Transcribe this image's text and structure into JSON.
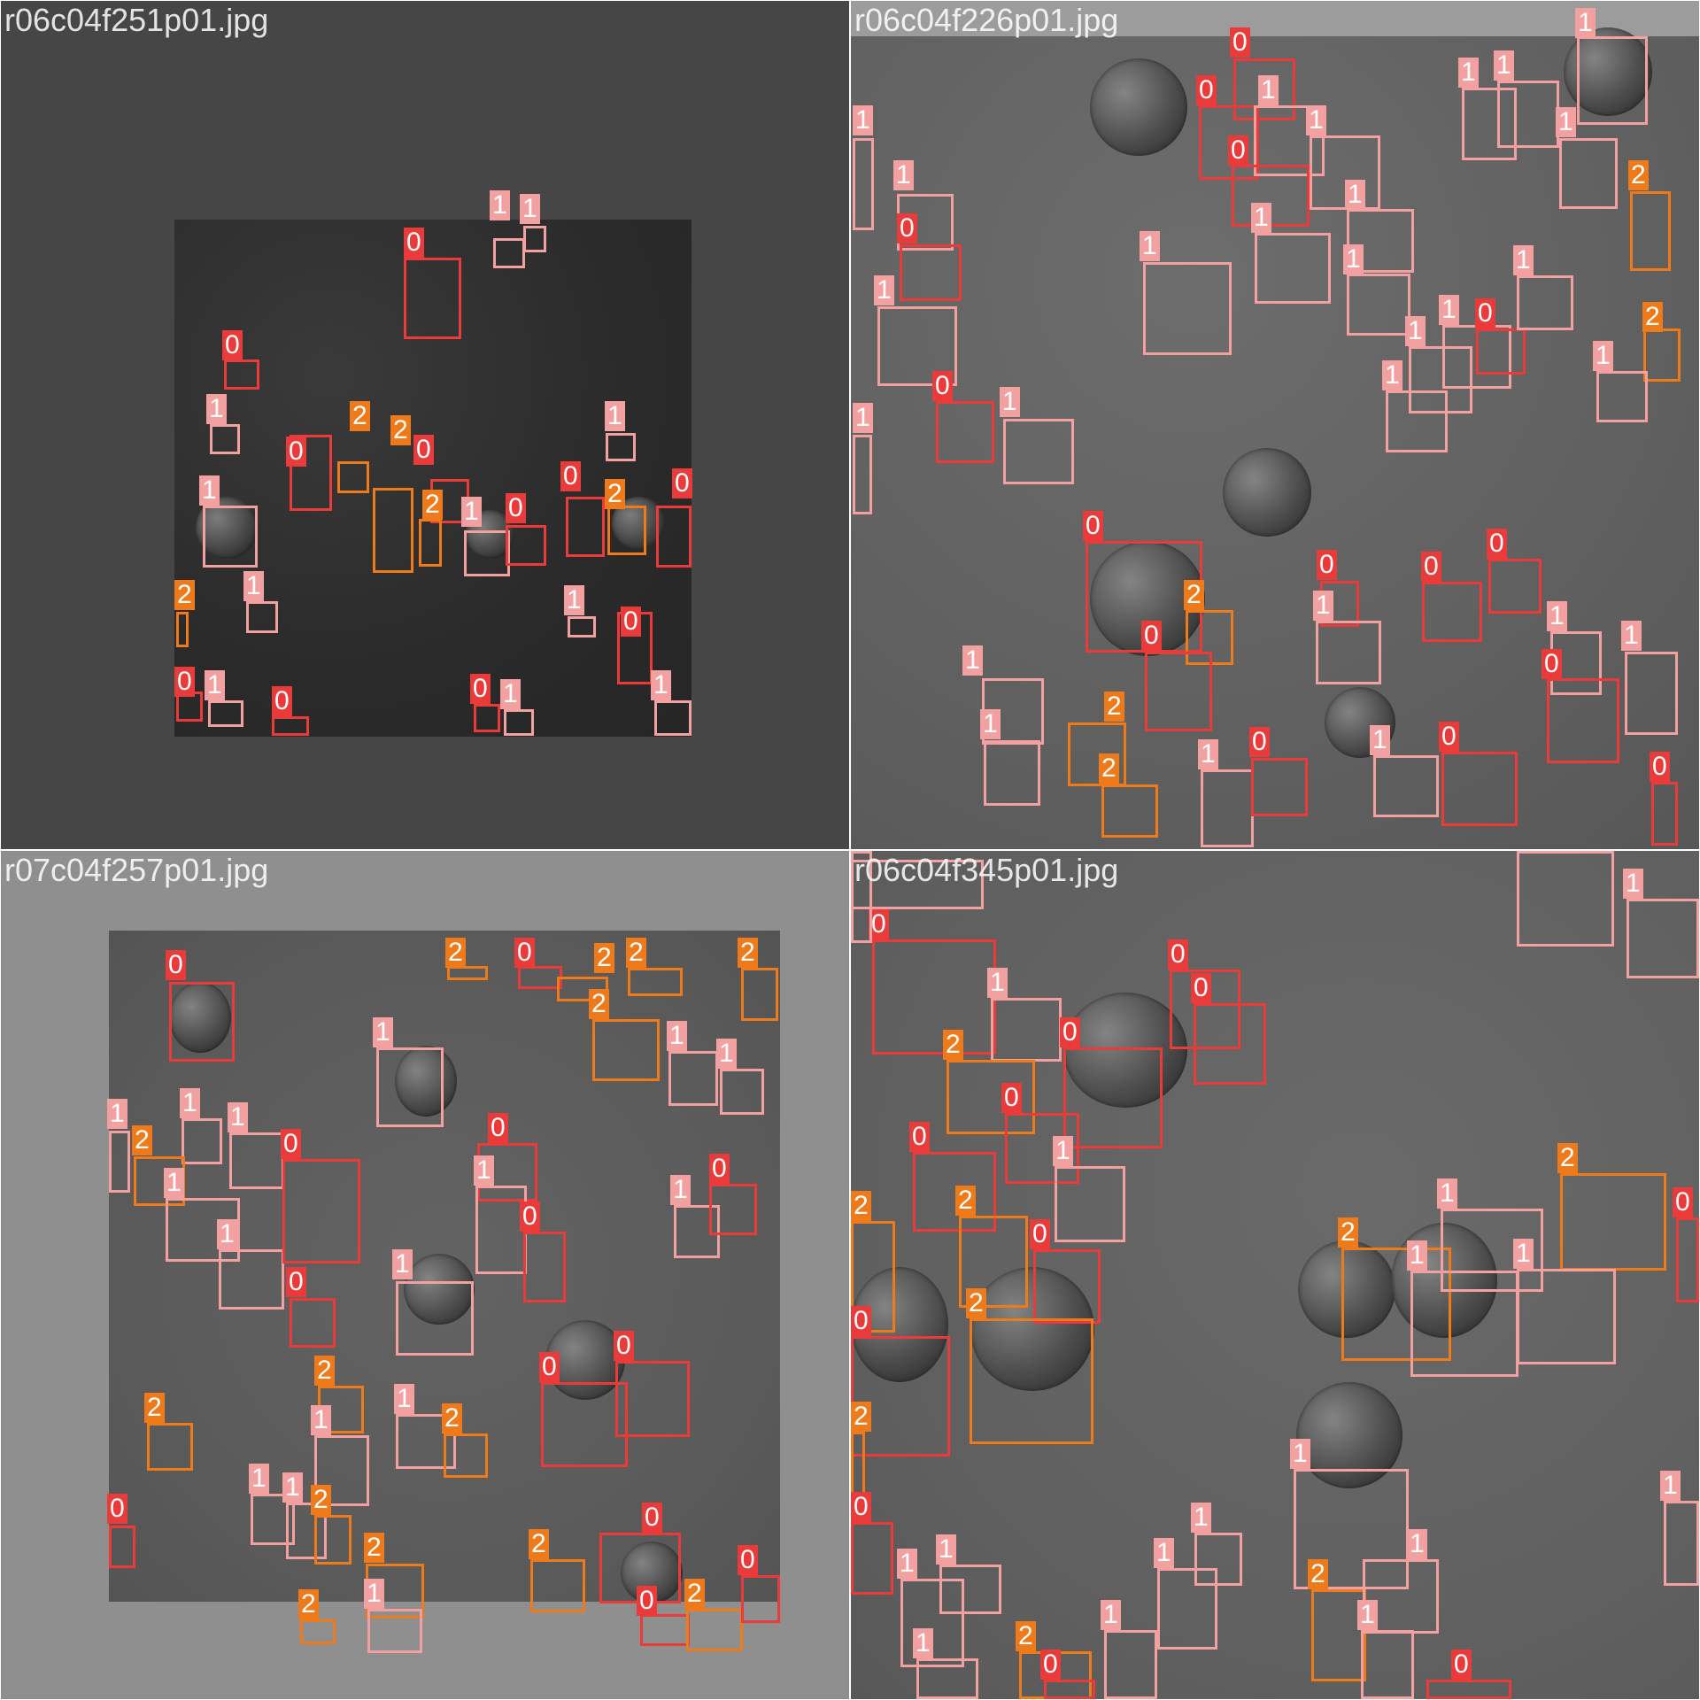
{
  "tiles": [
    {
      "filename": "r06c04f251p01.jpg"
    },
    {
      "filename": "r06c04f226p01.jpg"
    },
    {
      "filename": "r07c04f257p01.jpg"
    },
    {
      "filename": "r06c04f345p01.jpg"
    }
  ],
  "class_colors": {
    "0": "#ea3a3a",
    "1": "#f2a0a0",
    "2": "#ef7a1a"
  },
  "class_labels": {
    "c0": "0",
    "c1": "1",
    "c2": "2"
  }
}
